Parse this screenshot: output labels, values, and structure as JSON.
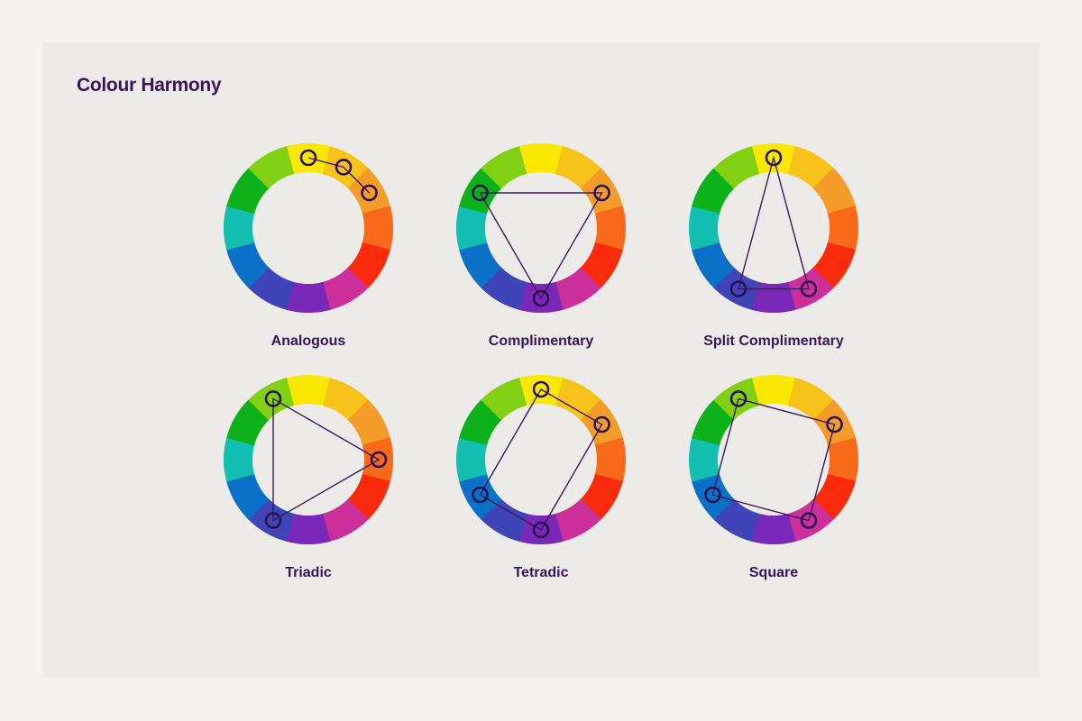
{
  "title": "Colour Harmony",
  "wheel_colors": [
    "#fbe800",
    "#f7c31a",
    "#f39c2a",
    "#f86a1a",
    "#fa2a0c",
    "#cc2f9a",
    "#7a28b8",
    "#3f45b8",
    "#0a70c8",
    "#12bfb0",
    "#0db21a",
    "#82d014"
  ],
  "marker_color": "#2b1250",
  "line_color": "#3a1a5a",
  "harmonies": [
    {
      "label": "Analogous",
      "hues": [
        0,
        1,
        2
      ],
      "connect": "chain"
    },
    {
      "label": "Complimentary",
      "hues": [
        10,
        2,
        6
      ],
      "connect": "polygon"
    },
    {
      "label": "Split Complimentary",
      "hues": [
        0,
        5,
        7
      ],
      "connect": "polygon"
    },
    {
      "label": "Triadic",
      "hues": [
        11,
        3,
        7
      ],
      "connect": "polygon"
    },
    {
      "label": "Tetradic",
      "hues": [
        0,
        2,
        6,
        8
      ],
      "connect": "polygon"
    },
    {
      "label": "Square",
      "hues": [
        11,
        2,
        5,
        8
      ],
      "connect": "polygon"
    }
  ]
}
